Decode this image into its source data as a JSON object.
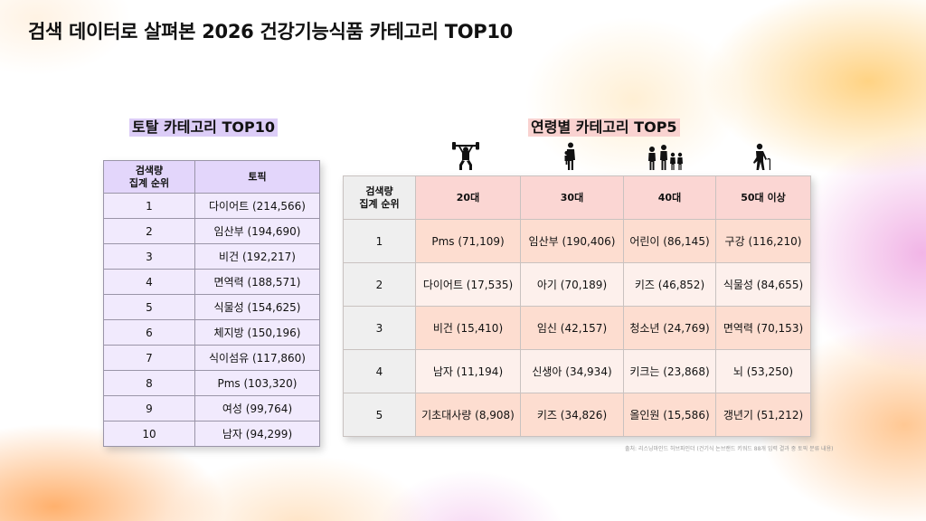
{
  "page": {
    "title": "검색 데이터로 살펴본 2026 건강기능식품 카테고리 TOP10",
    "source_note": "출처: 리스닝마인드 허브파인더 (건기식 논브랜드 키워드 88개 입력 결과 중 토픽 분류 내용)"
  },
  "total_table": {
    "title": "토탈 카테고리 TOP10",
    "header": {
      "rank": "검색량\n집계 순위",
      "topic": "토픽"
    },
    "rows": [
      {
        "rank": "1",
        "topic": "다이어트 (214,566)"
      },
      {
        "rank": "2",
        "topic": "임산부 (194,690)"
      },
      {
        "rank": "3",
        "topic": "비건 (192,217)"
      },
      {
        "rank": "4",
        "topic": "면역력 (188,571)"
      },
      {
        "rank": "5",
        "topic": "식물성 (154,625)"
      },
      {
        "rank": "6",
        "topic": "체지방 (150,196)"
      },
      {
        "rank": "7",
        "topic": "식이섬유 (117,860)"
      },
      {
        "rank": "8",
        "topic": "Pms (103,320)"
      },
      {
        "rank": "9",
        "topic": "여성 (99,764)"
      },
      {
        "rank": "10",
        "topic": "남자 (94,299)"
      }
    ]
  },
  "age_table": {
    "title": "연령별 카테고리 TOP5",
    "header": {
      "rank": "검색량\n집계 순위",
      "ages": [
        "20대",
        "30대",
        "40대",
        "50대 이상"
      ]
    },
    "icons": [
      "weightlifter-icon",
      "parent-with-child-icon",
      "family-icon",
      "elderly-with-cane-icon"
    ],
    "rows": [
      {
        "rank": "1",
        "cells": [
          "Pms (71,109)",
          "임산부 (190,406)",
          "어린이 (86,145)",
          "구강 (116,210)"
        ]
      },
      {
        "rank": "2",
        "cells": [
          "다이어트 (17,535)",
          "아기 (70,189)",
          "키즈 (46,852)",
          "식물성 (84,655)"
        ]
      },
      {
        "rank": "3",
        "cells": [
          "비건 (15,410)",
          "임신 (42,157)",
          "청소년 (24,769)",
          "면역력 (70,153)"
        ]
      },
      {
        "rank": "4",
        "cells": [
          "남자 (11,194)",
          "신생아 (34,934)",
          "키크는 (23,868)",
          "뇌 (53,250)"
        ]
      },
      {
        "rank": "5",
        "cells": [
          "기초대사량 (8,908)",
          "키즈 (34,826)",
          "올인원 (15,586)",
          "갱년기 (51,212)"
        ]
      }
    ]
  }
}
